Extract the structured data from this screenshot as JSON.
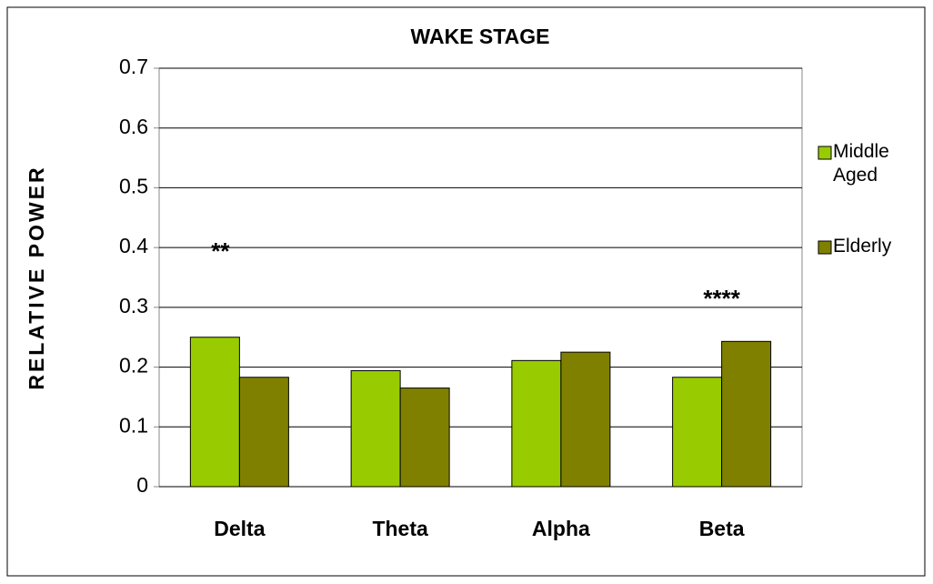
{
  "chart_data": {
    "type": "bar",
    "title": "WAKE STAGE",
    "y_label": "RELATIVE POWER",
    "categories": [
      "Delta",
      "Theta",
      "Alpha",
      "Beta"
    ],
    "series": [
      {
        "name": "Middle Aged",
        "color": "#99cc00",
        "values": [
          0.25,
          0.194,
          0.211,
          0.183
        ]
      },
      {
        "name": "Elderly",
        "color": "#808000",
        "values": [
          0.183,
          0.165,
          0.225,
          0.243
        ]
      }
    ],
    "annotations": [
      "**",
      null,
      null,
      "****"
    ],
    "ylim": [
      0,
      0.7
    ],
    "yticks": [
      0,
      0.1,
      0.2,
      0.3,
      0.4,
      0.5,
      0.6,
      0.7
    ],
    "grid": true
  }
}
